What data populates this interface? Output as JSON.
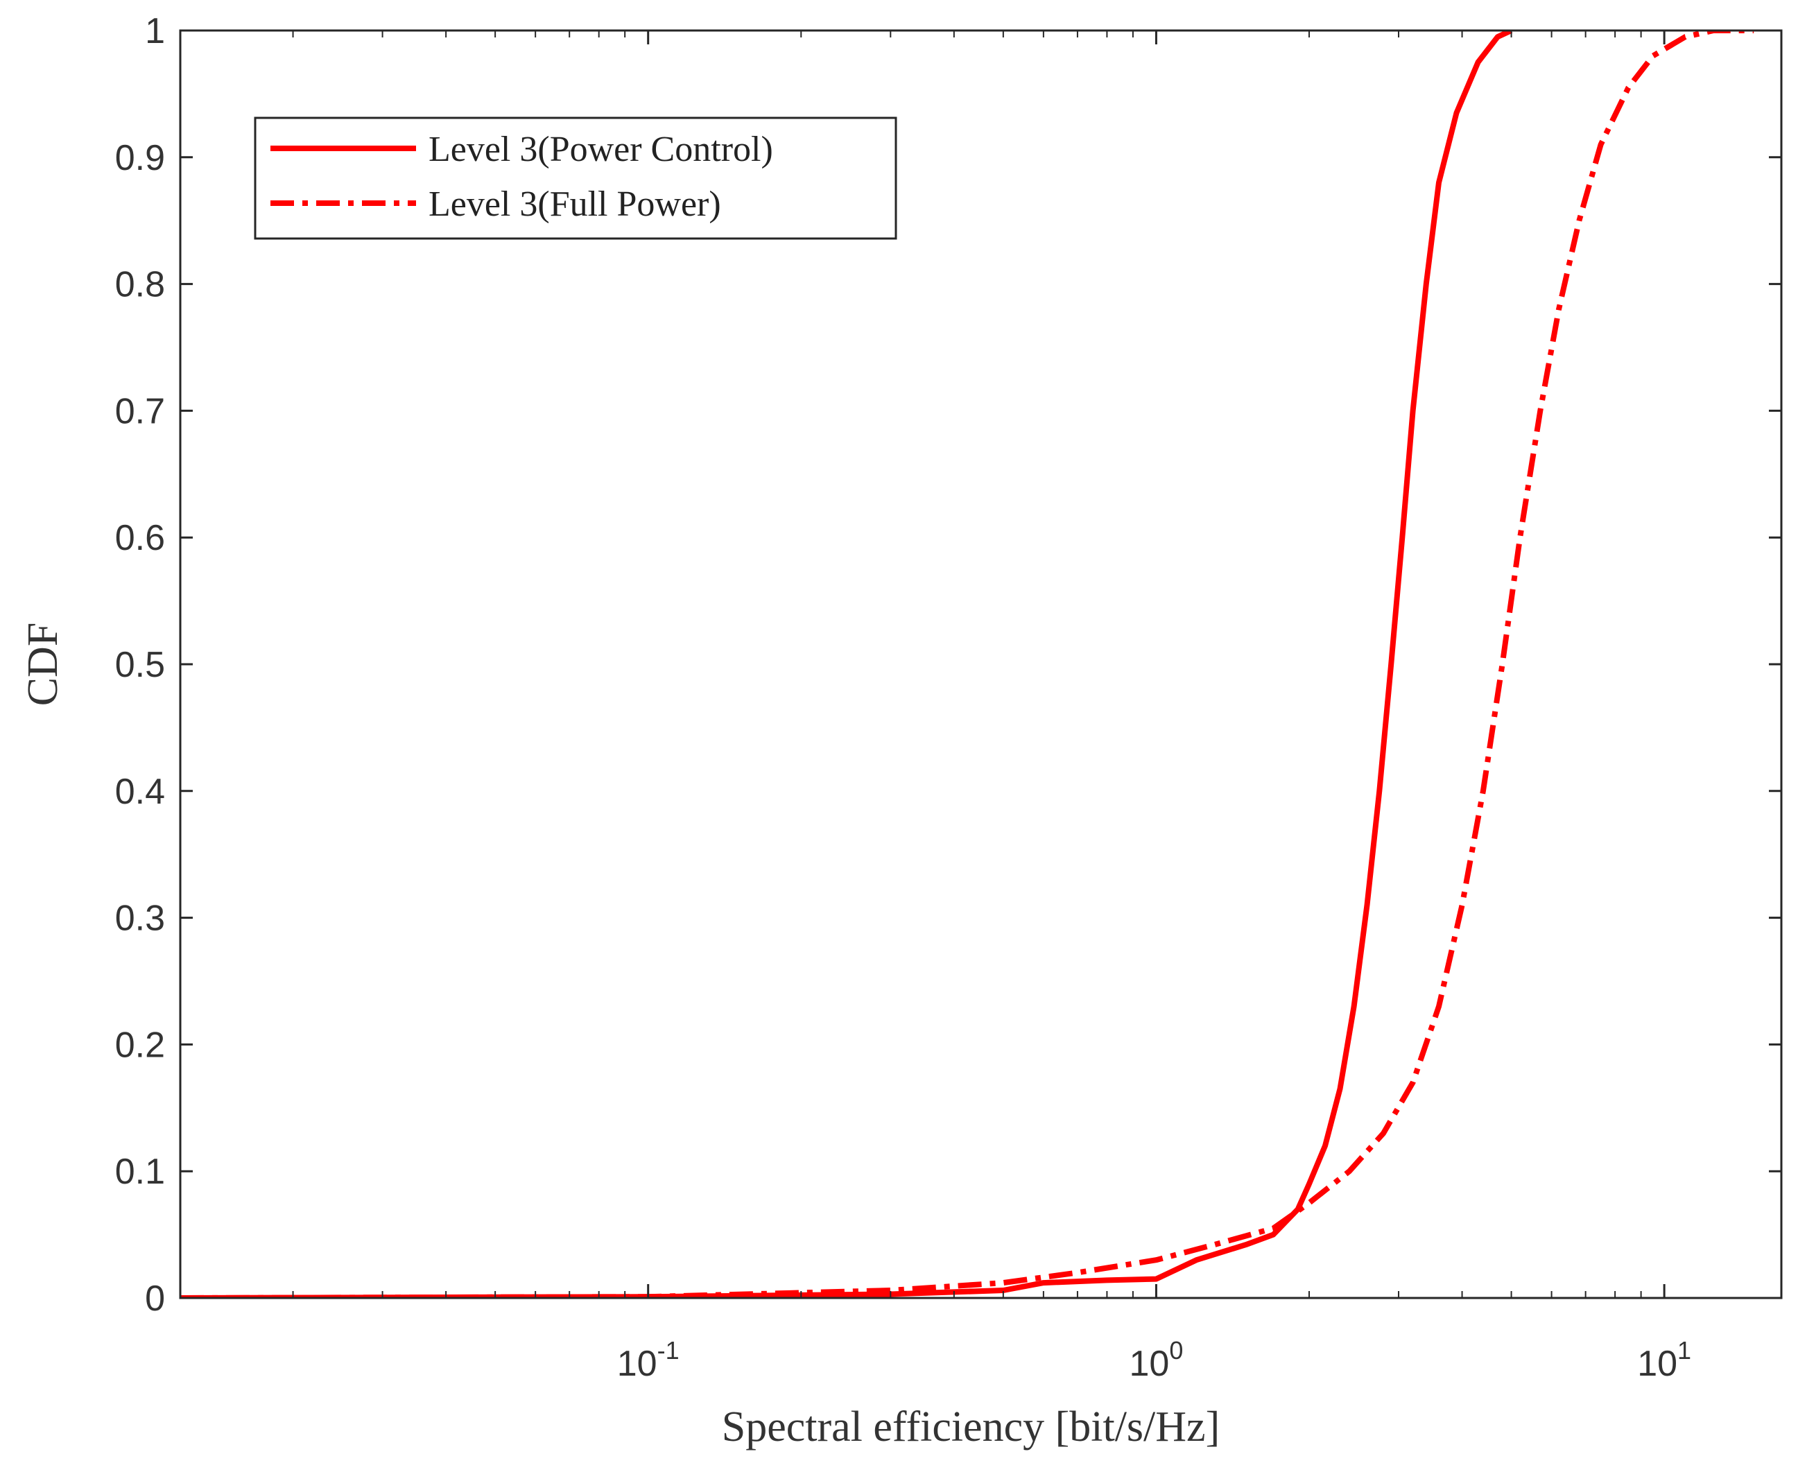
{
  "chart_data": {
    "type": "line",
    "x_scale": "log",
    "xlabel": "Spectral efficiency [bit/s/Hz]",
    "ylabel": "CDF",
    "xlim": [
      0.012,
      17
    ],
    "ylim": [
      0,
      1
    ],
    "x_ticks": [
      {
        "value": 0.1,
        "base": "10",
        "exponent": "-1"
      },
      {
        "value": 1,
        "base": "10",
        "exponent": "0"
      },
      {
        "value": 10,
        "base": "10",
        "exponent": "1"
      }
    ],
    "y_ticks": [
      {
        "value": 0,
        "label": "0"
      },
      {
        "value": 0.1,
        "label": "0.1"
      },
      {
        "value": 0.2,
        "label": "0.2"
      },
      {
        "value": 0.3,
        "label": "0.3"
      },
      {
        "value": 0.4,
        "label": "0.4"
      },
      {
        "value": 0.5,
        "label": "0.5"
      },
      {
        "value": 0.6,
        "label": "0.6"
      },
      {
        "value": 0.7,
        "label": "0.7"
      },
      {
        "value": 0.8,
        "label": "0.8"
      },
      {
        "value": 0.9,
        "label": "0.9"
      },
      {
        "value": 1,
        "label": "1"
      }
    ],
    "grid": false,
    "legend_position": "top-left",
    "series": [
      {
        "name": "Level 3(Power Control)",
        "color": "#ff0000",
        "style": "solid",
        "points": [
          [
            0.012,
            0
          ],
          [
            0.1,
            0.001
          ],
          [
            0.3,
            0.003
          ],
          [
            0.5,
            0.006
          ],
          [
            0.6,
            0.012
          ],
          [
            0.8,
            0.014
          ],
          [
            1.0,
            0.015
          ],
          [
            1.2,
            0.03
          ],
          [
            1.5,
            0.042
          ],
          [
            1.7,
            0.05
          ],
          [
            1.9,
            0.07
          ],
          [
            2.0,
            0.09
          ],
          [
            2.15,
            0.12
          ],
          [
            2.3,
            0.165
          ],
          [
            2.45,
            0.23
          ],
          [
            2.6,
            0.31
          ],
          [
            2.75,
            0.4
          ],
          [
            2.9,
            0.5
          ],
          [
            3.05,
            0.6
          ],
          [
            3.2,
            0.7
          ],
          [
            3.4,
            0.8
          ],
          [
            3.6,
            0.88
          ],
          [
            3.9,
            0.935
          ],
          [
            4.3,
            0.975
          ],
          [
            4.7,
            0.995
          ],
          [
            5.0,
            1.0
          ]
        ]
      },
      {
        "name": "Level 3(Full Power)",
        "color": "#ff0000",
        "style": "dash-dot",
        "points": [
          [
            0.012,
            0
          ],
          [
            0.1,
            0.001
          ],
          [
            0.3,
            0.006
          ],
          [
            0.5,
            0.012
          ],
          [
            0.7,
            0.02
          ],
          [
            1.0,
            0.03
          ],
          [
            1.3,
            0.042
          ],
          [
            1.7,
            0.055
          ],
          [
            2.0,
            0.075
          ],
          [
            2.4,
            0.1
          ],
          [
            2.8,
            0.13
          ],
          [
            3.2,
            0.17
          ],
          [
            3.6,
            0.23
          ],
          [
            4.0,
            0.31
          ],
          [
            4.4,
            0.4
          ],
          [
            4.8,
            0.5
          ],
          [
            5.2,
            0.6
          ],
          [
            5.7,
            0.7
          ],
          [
            6.2,
            0.78
          ],
          [
            6.8,
            0.85
          ],
          [
            7.5,
            0.91
          ],
          [
            8.5,
            0.955
          ],
          [
            9.5,
            0.98
          ],
          [
            11,
            0.995
          ],
          [
            12.5,
            1.0
          ],
          [
            15,
            1.0
          ]
        ]
      }
    ]
  }
}
